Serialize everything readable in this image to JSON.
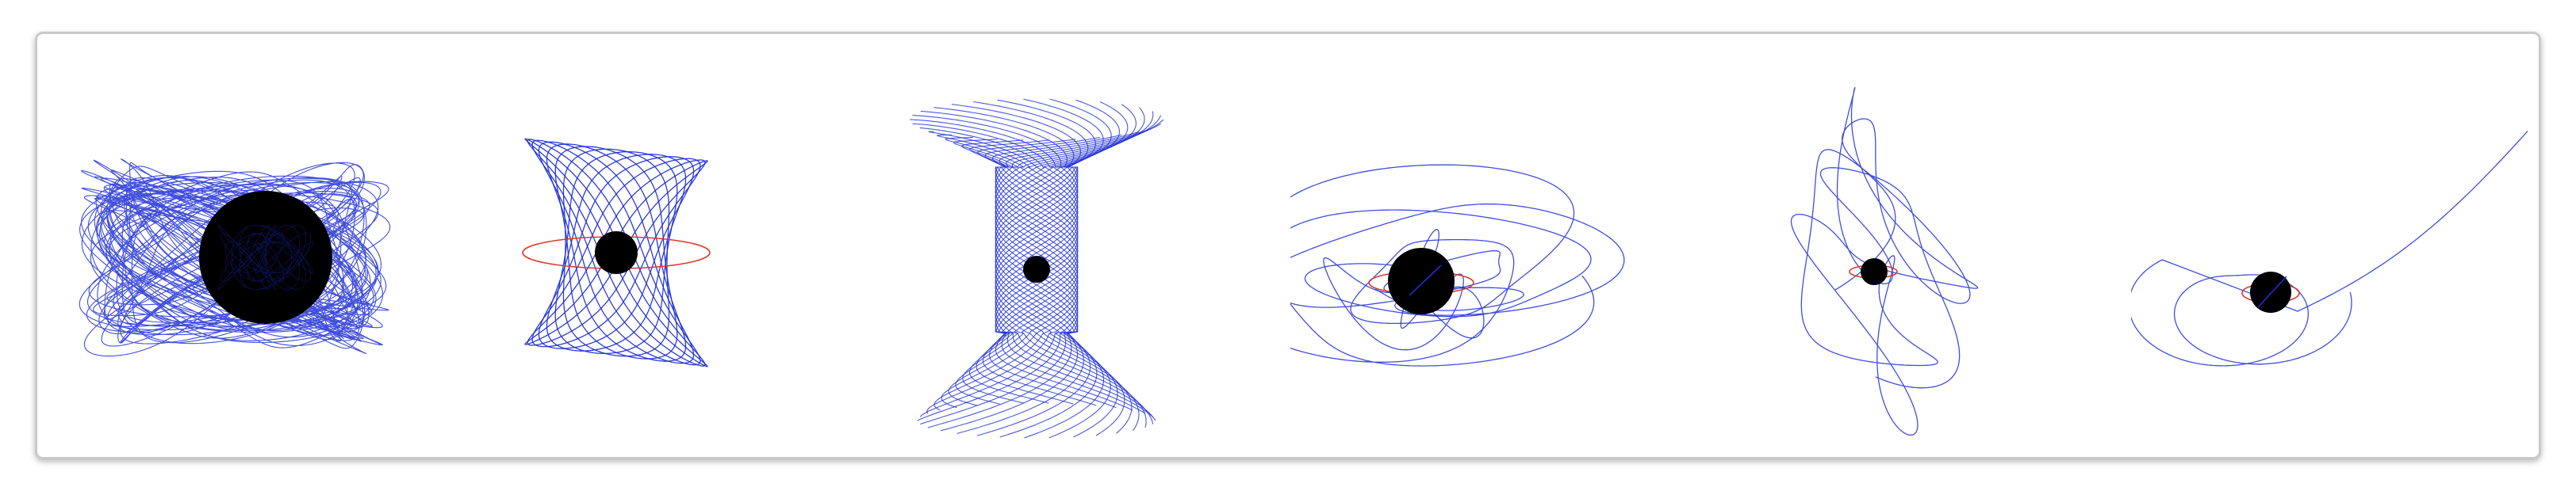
{
  "colors": {
    "trajectory": "#1f2fd6",
    "orbit_ring": "#d83a2a",
    "black_hole": "#000000",
    "frame_border": "#c9c9c9",
    "background": "#ffffff"
  },
  "panels": [
    {
      "kind": "dense-torus-orbit"
    },
    {
      "kind": "hourglass-orbit"
    },
    {
      "kind": "spirograph-funnel-orbit"
    },
    {
      "kind": "chaotic-loop-orbit"
    },
    {
      "kind": "tall-chaotic-orbit"
    },
    {
      "kind": "escape-orbit"
    }
  ]
}
